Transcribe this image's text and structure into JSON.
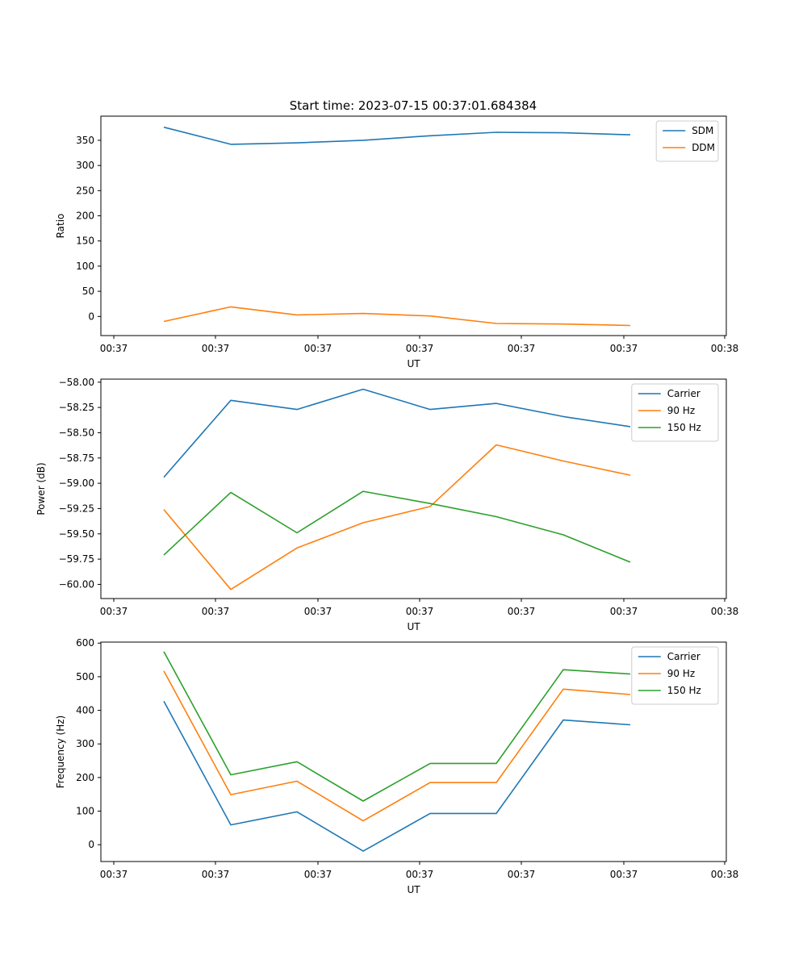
{
  "figure_title": "Start time: 2023-07-15 00:37:01.684384",
  "colors": {
    "blue": "#1f77b4",
    "orange": "#ff7f0e",
    "green": "#2ca02c"
  },
  "chart_data": [
    {
      "type": "line",
      "xlabel": "UT",
      "ylabel": "Ratio",
      "xticklabels": [
        "00:37",
        "00:37",
        "00:37",
        "00:37",
        "00:37",
        "00:37",
        "00:38"
      ],
      "yticks": [
        0,
        50,
        100,
        150,
        200,
        250,
        300,
        350
      ],
      "ylim": [
        -38,
        398
      ],
      "legend_loc": "upper right",
      "series": [
        {
          "name": "SDM",
          "color": "#1f77b4",
          "values": [
            376,
            342,
            345,
            350,
            359,
            366,
            365,
            361
          ]
        },
        {
          "name": "DDM",
          "color": "#ff7f0e",
          "values": [
            -10,
            19,
            3,
            6,
            1,
            -14,
            -15,
            -18
          ]
        }
      ]
    },
    {
      "type": "line",
      "xlabel": "UT",
      "ylabel": "Power (dB)",
      "xticklabels": [
        "00:37",
        "00:37",
        "00:37",
        "00:37",
        "00:37",
        "00:37",
        "00:38"
      ],
      "yticks": [
        -58.0,
        -58.25,
        -58.5,
        -58.75,
        -59.0,
        -59.25,
        -59.5,
        -59.75,
        -60.0
      ],
      "yticklabels": [
        "−58.00",
        "−58.25",
        "−58.50",
        "−58.75",
        "−59.00",
        "−59.25",
        "−59.50",
        "−59.75",
        "−60.00"
      ],
      "ylim": [
        -60.14,
        -57.97
      ],
      "legend_loc": "upper right",
      "series": [
        {
          "name": "Carrier",
          "color": "#1f77b4",
          "values": [
            -58.94,
            -58.18,
            -58.27,
            -58.07,
            -58.27,
            -58.21,
            -58.34,
            -58.44
          ]
        },
        {
          "name": "90 Hz",
          "color": "#ff7f0e",
          "values": [
            -59.26,
            -60.05,
            -59.64,
            -59.39,
            -59.23,
            -58.62,
            -58.78,
            -58.92
          ]
        },
        {
          "name": "150 Hz",
          "color": "#2ca02c",
          "values": [
            -59.71,
            -59.09,
            -59.49,
            -59.08,
            -59.2,
            -59.33,
            -59.51,
            -59.78
          ]
        }
      ]
    },
    {
      "type": "line",
      "xlabel": "UT",
      "ylabel": "Frequency (Hz)",
      "xticklabels": [
        "00:37",
        "00:37",
        "00:37",
        "00:37",
        "00:37",
        "00:37",
        "00:38"
      ],
      "yticks": [
        0,
        100,
        200,
        300,
        400,
        500,
        600
      ],
      "ylim": [
        -50,
        603
      ],
      "legend_loc": "upper right",
      "series": [
        {
          "name": "Carrier",
          "color": "#1f77b4",
          "values": [
            427,
            59,
            98,
            -19,
            93,
            93,
            371,
            357
          ]
        },
        {
          "name": "90 Hz",
          "color": "#ff7f0e",
          "values": [
            517,
            149,
            189,
            71,
            185,
            185,
            463,
            447
          ]
        },
        {
          "name": "150 Hz",
          "color": "#2ca02c",
          "values": [
            575,
            208,
            247,
            130,
            242,
            242,
            521,
            508
          ]
        }
      ]
    }
  ]
}
